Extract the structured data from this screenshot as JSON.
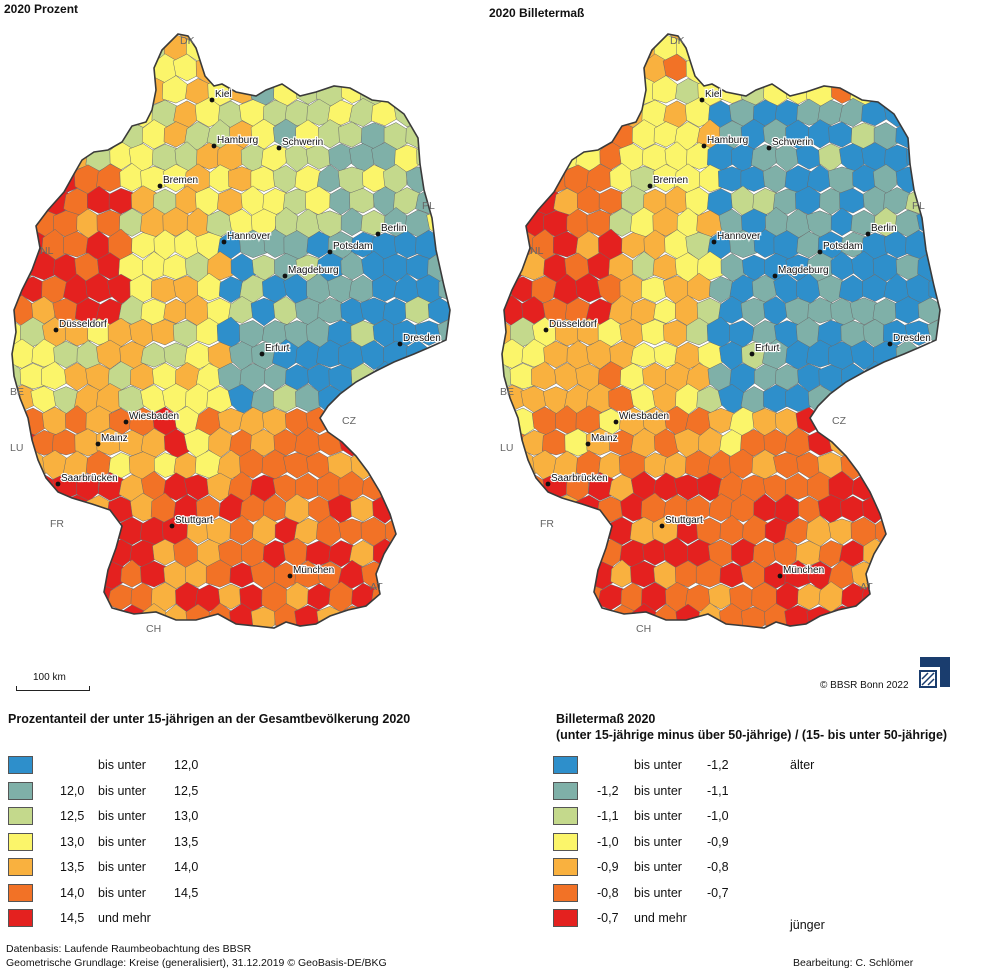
{
  "left_map": {
    "title": "2020 Prozent",
    "cities": [
      "Kiel",
      "Hamburg",
      "Schwerin",
      "Bremen",
      "Berlin",
      "Hannover",
      "Potsdam",
      "Magdeburg",
      "Düsseldorf",
      "Erfurt",
      "Dresden",
      "Wiesbaden",
      "Mainz",
      "Saarbrücken",
      "Stuttgart",
      "München"
    ],
    "countries": [
      "DK",
      "PL",
      "NL",
      "BE",
      "LU",
      "FR",
      "CZ",
      "AT",
      "CH"
    ]
  },
  "right_map": {
    "title": "2020 Billetermaß"
  },
  "scale": {
    "label": "100 km"
  },
  "copyright": "© BBSR Bonn 2022",
  "legend_left": {
    "title": "Prozentanteil der unter 15-jährigen an der Gesamtbevölkerung 2020",
    "items": [
      {
        "color": "#2e8fcb",
        "from": "",
        "rel": "bis unter",
        "to": "12,0"
      },
      {
        "color": "#7fb0a8",
        "from": "12,0",
        "rel": "bis unter",
        "to": "12,5"
      },
      {
        "color": "#c4d98c",
        "from": "12,5",
        "rel": "bis unter",
        "to": "13,0"
      },
      {
        "color": "#fbf56a",
        "from": "13,0",
        "rel": "bis unter",
        "to": "13,5"
      },
      {
        "color": "#f9b13f",
        "from": "13,5",
        "rel": "bis unter",
        "to": "14,0"
      },
      {
        "color": "#f27226",
        "from": "14,0",
        "rel": "bis unter",
        "to": "14,5"
      },
      {
        "color": "#e4211f",
        "from": "14,5",
        "rel": "und mehr",
        "to": ""
      }
    ]
  },
  "legend_right": {
    "title": "Billetermaß 2020",
    "subtitle": "(unter 15-jährige minus über 50-jährige) / (15- bis unter 50-jährige)",
    "older": "älter",
    "younger": "jünger",
    "items": [
      {
        "color": "#2e8fcb",
        "from": "",
        "rel": "bis unter",
        "to": "-1,2"
      },
      {
        "color": "#7fb0a8",
        "from": "-1,2",
        "rel": "bis unter",
        "to": "-1,1"
      },
      {
        "color": "#c4d98c",
        "from": "-1,1",
        "rel": "bis unter",
        "to": "-1,0"
      },
      {
        "color": "#fbf56a",
        "from": "-1,0",
        "rel": "bis unter",
        "to": "-0,9"
      },
      {
        "color": "#f9b13f",
        "from": "-0,9",
        "rel": "bis unter",
        "to": "-0,8"
      },
      {
        "color": "#f27226",
        "from": "-0,8",
        "rel": "bis unter",
        "to": "-0,7"
      },
      {
        "color": "#e4211f",
        "from": "-0,7",
        "rel": "und mehr",
        "to": ""
      }
    ]
  },
  "footer": {
    "source1": "Datenbasis: Laufende Raumbeobachtung des BBSR",
    "source2": "Geometrische Grundlage: Kreise (generalisiert), 31.12.2019 © GeoBasis-DE/BKG",
    "author": "Bearbeitung: C. Schlömer"
  }
}
